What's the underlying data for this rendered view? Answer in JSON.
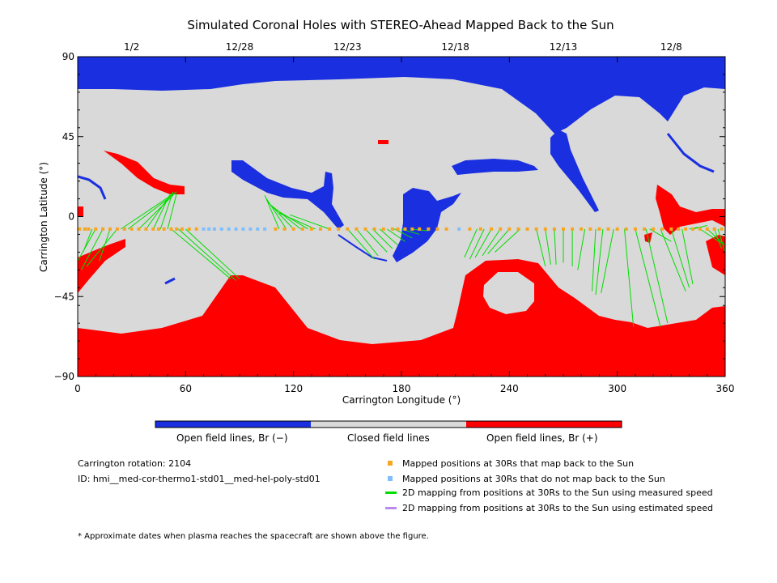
{
  "chart_data": {
    "type": "heatmap",
    "title": "Simulated Coronal Holes with STEREO-Ahead Mapped Back to the Sun",
    "xlabel": "Carrington Longitude (°)",
    "ylabel": "Carrington Latitude (°)",
    "xlim": [
      0,
      360
    ],
    "ylim": [
      -90,
      90
    ],
    "x_ticks": [
      0,
      60,
      120,
      180,
      240,
      300,
      360
    ],
    "y_ticks": [
      90,
      45,
      0,
      -45,
      -90
    ],
    "y_tick_labels": [
      "90",
      "45",
      "0",
      "−45",
      "−90"
    ],
    "top_axis_dates": [
      {
        "label": "1/2",
        "lon": 30
      },
      {
        "label": "12/28",
        "lon": 90
      },
      {
        "label": "12/23",
        "lon": 150
      },
      {
        "label": "12/18",
        "lon": 210
      },
      {
        "label": "12/13",
        "lon": 270
      },
      {
        "label": "12/8",
        "lon": 330
      }
    ],
    "categories": [
      {
        "name": "Open field lines, Br (−)",
        "color": "#1a2fe0"
      },
      {
        "name": "Closed field lines",
        "color": "#d9d9d9"
      },
      {
        "name": "Open field lines, Br (+)",
        "color": "#ff0000"
      }
    ],
    "spacecraft_latitude": -7,
    "mapped_back_lons": [
      1,
      4,
      6,
      10,
      14,
      18,
      22,
      26,
      30,
      34,
      38,
      42,
      45,
      48,
      52,
      55,
      58,
      62,
      66,
      110,
      115,
      120,
      125,
      130,
      135,
      140,
      145,
      150,
      155,
      160,
      165,
      170,
      175,
      178,
      182,
      186,
      190,
      195,
      200,
      205,
      218,
      224,
      230,
      235,
      240,
      245,
      250,
      255,
      260,
      265,
      270,
      275,
      280,
      285,
      290,
      295,
      300,
      305,
      310,
      315,
      320,
      325,
      330,
      334,
      338,
      342,
      346,
      350,
      354,
      358
    ],
    "not_mapped_lons": [
      70,
      73,
      76,
      80,
      84,
      88,
      92,
      96,
      100,
      104,
      212
    ],
    "measured_speed_lines": [
      [
        10,
        -7,
        0,
        -25
      ],
      [
        14,
        -7,
        2,
        -30
      ],
      [
        8,
        -7,
        3,
        -20
      ],
      [
        18,
        -7,
        12,
        -25
      ],
      [
        22,
        -7,
        5,
        -28
      ],
      [
        24,
        -7,
        55,
        14
      ],
      [
        28,
        -7,
        54,
        13
      ],
      [
        34,
        -7,
        53,
        12
      ],
      [
        38,
        -7,
        52,
        13
      ],
      [
        42,
        -7,
        51,
        12
      ],
      [
        46,
        -7,
        53,
        14
      ],
      [
        50,
        -7,
        55,
        13
      ],
      [
        52,
        -7,
        85,
        -35
      ],
      [
        56,
        -7,
        88,
        -36
      ],
      [
        60,
        -7,
        90,
        -35
      ],
      [
        112,
        -7,
        104,
        12
      ],
      [
        116,
        -7,
        105,
        10
      ],
      [
        120,
        -7,
        106,
        8
      ],
      [
        124,
        -7,
        108,
        6
      ],
      [
        128,
        -7,
        110,
        4
      ],
      [
        132,
        -7,
        112,
        2
      ],
      [
        140,
        -7,
        118,
        1
      ],
      [
        150,
        -7,
        165,
        -24
      ],
      [
        155,
        -7,
        167,
        -22
      ],
      [
        160,
        -7,
        172,
        -20
      ],
      [
        164,
        -7,
        175,
        -18
      ],
      [
        168,
        -7,
        178,
        -16
      ],
      [
        172,
        -7,
        182,
        -14
      ],
      [
        176,
        -7,
        186,
        -12
      ],
      [
        180,
        -7,
        190,
        -10
      ],
      [
        185,
        -7,
        195,
        -8
      ],
      [
        222,
        -7,
        215,
        -23
      ],
      [
        226,
        -7,
        218,
        -24
      ],
      [
        230,
        -7,
        221,
        -23
      ],
      [
        235,
        -7,
        225,
        -22
      ],
      [
        240,
        -7,
        228,
        -21
      ],
      [
        246,
        -7,
        232,
        -20
      ],
      [
        255,
        -7,
        260,
        -28
      ],
      [
        260,
        -7,
        263,
        -27
      ],
      [
        265,
        -7,
        266,
        -27
      ],
      [
        270,
        -7,
        270,
        -26
      ],
      [
        275,
        -7,
        275,
        -28
      ],
      [
        282,
        -7,
        278,
        -30
      ],
      [
        288,
        -7,
        286,
        -42
      ],
      [
        292,
        -7,
        288,
        -44
      ],
      [
        298,
        -7,
        291,
        -43
      ],
      [
        304,
        -7,
        309,
        -62
      ],
      [
        310,
        -7,
        324,
        -62
      ],
      [
        316,
        -7,
        328,
        -60
      ],
      [
        324,
        -7,
        338,
        -42
      ],
      [
        330,
        -7,
        340,
        -40
      ],
      [
        336,
        -7,
        342,
        -38
      ],
      [
        346,
        -7,
        358,
        -15
      ],
      [
        350,
        -7,
        360,
        -16
      ],
      [
        354,
        -7,
        358,
        -18
      ],
      [
        356,
        -7,
        360,
        -20
      ],
      [
        318,
        -7,
        330,
        -14
      ],
      [
        340,
        -7,
        345,
        -6
      ],
      [
        342,
        -7,
        350,
        -5
      ]
    ]
  },
  "info": {
    "rotation": "Carrington rotation: 2104",
    "id": "ID: hmi__med-cor-thermo1-std01__med-hel-poly-std01",
    "footnote": "* Approximate dates when plasma reaches the spacecraft are shown above the figure."
  },
  "legend": [
    {
      "label": "Mapped positions at 30Rs that map back to the Sun",
      "color": "#f5a623",
      "kind": "square"
    },
    {
      "label": "Mapped positions at 30Rs that do not map back to the Sun",
      "color": "#7fbfff",
      "kind": "square"
    },
    {
      "label": "2D mapping from positions at 30Rs to the Sun using measured speed",
      "color": "#00dd00",
      "kind": "line"
    },
    {
      "label": "2D mapping from positions at 30Rs to the Sun using estimated speed",
      "color": "#bb88ee",
      "kind": "line"
    }
  ]
}
